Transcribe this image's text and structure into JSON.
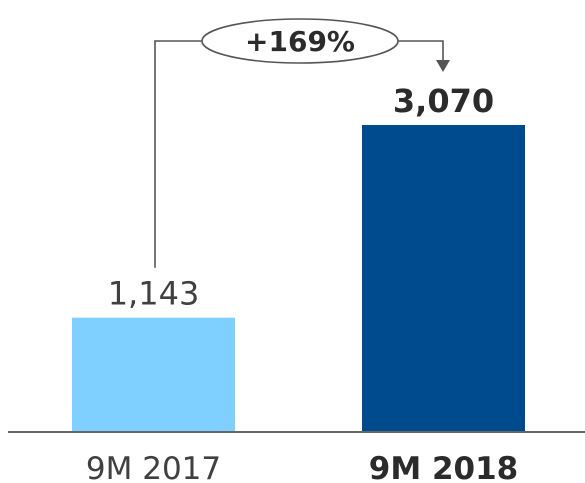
{
  "chart_data": {
    "type": "bar",
    "categories": [
      "9M 2017",
      "9M 2018"
    ],
    "values": [
      1143,
      3070
    ],
    "value_labels": [
      "1,143",
      "3,070"
    ],
    "bar_colors": [
      "#7fcfff",
      "#004b8d"
    ],
    "emphasis": [
      false,
      true
    ],
    "growth_label": "+169%",
    "ylim": [
      0,
      3500
    ],
    "grid": false,
    "legend": "none"
  },
  "colors": {
    "text": "#404040",
    "text_bold": "#2b2b2b",
    "axis": "#666666",
    "arrow": "#555555"
  }
}
